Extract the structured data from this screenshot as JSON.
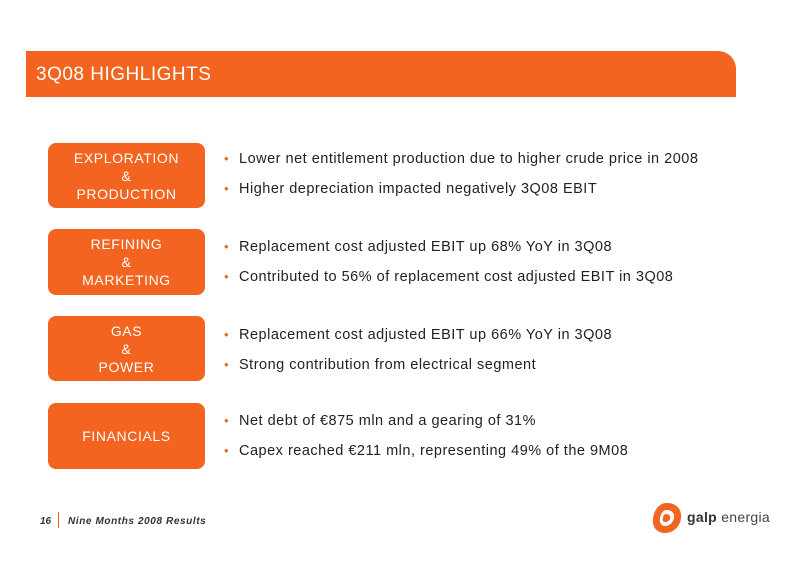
{
  "header": {
    "title": "3Q08 HIGHLIGHTS"
  },
  "sections": [
    {
      "label_lines": [
        "EXPLORATION",
        "&",
        "PRODUCTION"
      ],
      "bullets": [
        "Lower net entitlement production due to higher crude price in 2008",
        "Higher depreciation impacted negatively 3Q08 EBIT"
      ]
    },
    {
      "label_lines": [
        "REFINING",
        "&",
        "MARKETING"
      ],
      "bullets": [
        "Replacement cost adjusted EBIT up 68% YoY in 3Q08",
        "Contributed to 56% of replacement cost adjusted EBIT in 3Q08"
      ]
    },
    {
      "label_lines": [
        "GAS",
        "&",
        "POWER"
      ],
      "bullets": [
        "Replacement cost adjusted EBIT up 66% YoY in 3Q08",
        "Strong contribution from electrical segment"
      ]
    },
    {
      "label_lines": [
        "FINANCIALS"
      ],
      "bullets": [
        "Net debt of €875 mln and a gearing of 31%",
        "Capex reached €211 mln, representing 49% of the 9M08"
      ]
    }
  ],
  "footer": {
    "page_number": "16",
    "text": "Nine Months 2008 Results"
  },
  "logo": {
    "word1": "galp",
    "word2": "energia"
  },
  "colors": {
    "accent": "#f26420"
  }
}
